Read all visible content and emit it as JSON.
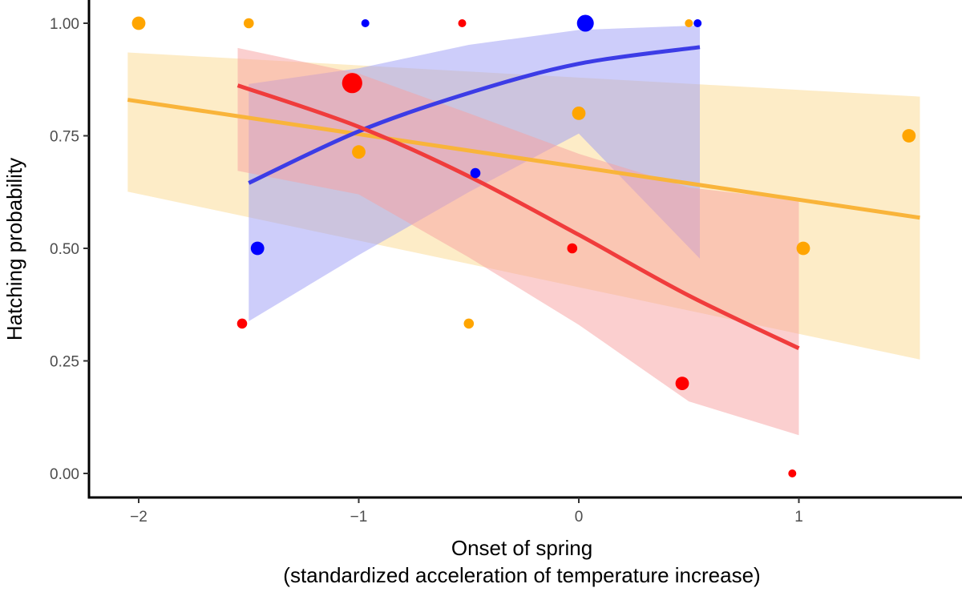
{
  "chart_data": {
    "type": "scatter",
    "title": "",
    "xlabel": "Onset of spring",
    "xlabel_line2": "(standardized acceleration of temperature increase)",
    "ylabel": "Hatching probability",
    "xlim": [
      -2.2,
      1.6
    ],
    "ylim": [
      -0.05,
      1.03
    ],
    "x_ticks": [
      -2,
      -1,
      0,
      1
    ],
    "x_tick_labels": [
      "−2",
      "−1",
      "0",
      "1"
    ],
    "y_ticks": [
      0,
      0.25,
      0.5,
      0.75,
      1
    ],
    "y_tick_labels": [
      "0.00",
      "0.25",
      "0.50",
      "0.75",
      "1.00"
    ],
    "grid": false,
    "legend": "none",
    "series": [
      {
        "color": "#FFA500",
        "line_color": "#F9B43A",
        "band_color": "#FCD98F",
        "points": [
          {
            "x": -2.0,
            "y": 1.0,
            "size": 2
          },
          {
            "x": -1.5,
            "y": 1.0,
            "size": 1.5
          },
          {
            "x": -1.0,
            "y": 0.714,
            "size": 2
          },
          {
            "x": -0.5,
            "y": 0.333,
            "size": 1.5
          },
          {
            "x": 0.0,
            "y": 0.8,
            "size": 2
          },
          {
            "x": 0.5,
            "y": 1.0,
            "size": 1.2
          },
          {
            "x": 1.02,
            "y": 0.5,
            "size": 2
          },
          {
            "x": 1.5,
            "y": 0.75,
            "size": 2
          }
        ],
        "fit": {
          "x0": -2.05,
          "x1": 1.55,
          "y0": 0.83,
          "y1": 0.568
        },
        "band": {
          "x0": -2.05,
          "x1": 1.55,
          "lower0": 0.626,
          "lower1": 0.253,
          "upper0": 0.935,
          "upper1": 0.837
        }
      },
      {
        "color": "#0000FF",
        "line_color": "#3C3CE6",
        "band_color": "#9C9CF5",
        "points": [
          {
            "x": -1.46,
            "y": 0.5,
            "size": 2
          },
          {
            "x": -0.97,
            "y": 1.0,
            "size": 1.2
          },
          {
            "x": -0.47,
            "y": 0.667,
            "size": 1.5
          },
          {
            "x": 0.03,
            "y": 1.0,
            "size": 2.5
          },
          {
            "x": 0.54,
            "y": 1.0,
            "size": 1.2
          }
        ],
        "fit": {
          "x": [
            -1.5,
            -1.0,
            -0.5,
            0.0,
            0.55
          ],
          "y": [
            0.645,
            0.76,
            0.845,
            0.91,
            0.947
          ]
        },
        "band": {
          "x": [
            -1.5,
            -1.0,
            -0.5,
            0.0,
            0.55
          ],
          "lower": [
            0.338,
            0.485,
            0.625,
            0.755,
            0.477
          ],
          "upper": [
            0.865,
            0.9,
            0.952,
            0.985,
            0.995
          ]
        }
      },
      {
        "color": "#FF0000",
        "line_color": "#F03C3C",
        "band_color": "#F7A0A0",
        "points": [
          {
            "x": -1.53,
            "y": 0.333,
            "size": 1.5
          },
          {
            "x": -1.03,
            "y": 0.867,
            "size": 3
          },
          {
            "x": -0.53,
            "y": 1.0,
            "size": 1.2
          },
          {
            "x": -0.03,
            "y": 0.5,
            "size": 1.5
          },
          {
            "x": 0.47,
            "y": 0.2,
            "size": 2
          },
          {
            "x": 0.97,
            "y": 0.0,
            "size": 1.2
          }
        ],
        "fit": {
          "x": [
            -1.55,
            -1.0,
            -0.5,
            0.0,
            0.5,
            1.0
          ],
          "y": [
            0.862,
            0.77,
            0.66,
            0.53,
            0.395,
            0.278
          ]
        },
        "band": {
          "x": [
            -1.55,
            -1.0,
            -0.5,
            0.0,
            0.5,
            1.0
          ],
          "lower": [
            0.672,
            0.62,
            0.48,
            0.33,
            0.16,
            0.085
          ],
          "upper": [
            0.945,
            0.888,
            0.8,
            0.71,
            0.635,
            0.607
          ]
        }
      }
    ]
  }
}
